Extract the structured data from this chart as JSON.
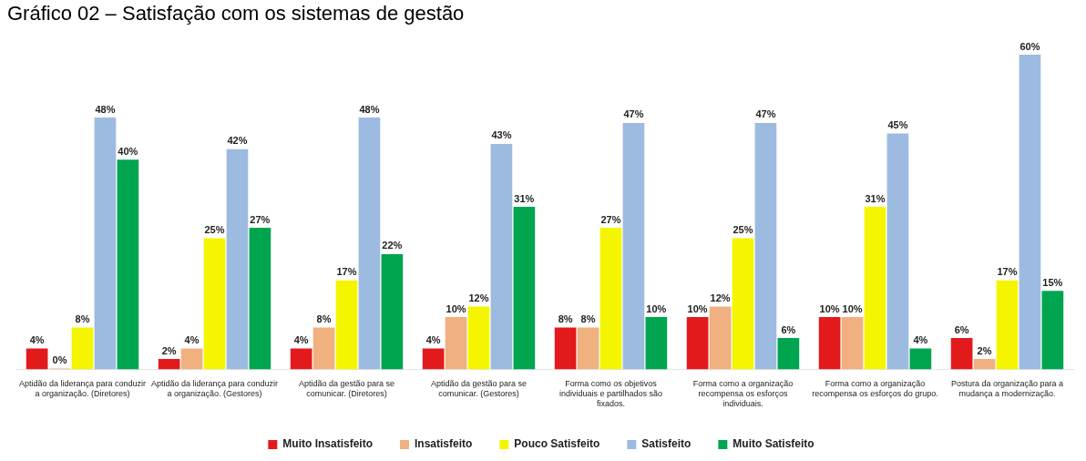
{
  "chart_data": {
    "type": "bar",
    "title": "Gráfico 02 – Satisfação com os sistemas de gestão",
    "categories": [
      "Aptidão da liderança para conduzir a organização. (Diretores)",
      "Aptidão da liderança para conduzir a organização. (Gestores)",
      "Aptidão da gestão para se comunicar. (Diretores)",
      "Aptidão da gestão para se comunicar. (Gestores)",
      "Forma como os objetivos individuais e partilhados são fixados.",
      "Forma como a organização recompensa os esforços individuais.",
      "Forma como a organização recompensa os esforços do grupo.",
      "Postura da organização para a mudança a modernização."
    ],
    "series": [
      {
        "name": "Muito Insatisfeito",
        "color": "#e31a1c",
        "values": [
          4,
          2,
          4,
          4,
          8,
          10,
          10,
          6
        ],
        "value_labels": [
          "4%",
          "2%",
          "4%",
          "4%",
          "8%",
          "10%",
          "10%",
          "6%"
        ]
      },
      {
        "name": "Insatisfeito",
        "color": "#f0b080",
        "values": [
          0,
          4,
          8,
          10,
          8,
          12,
          10,
          2
        ],
        "value_labels": [
          "0%",
          "4%",
          "8%",
          "10%",
          "8%",
          "12%",
          "10%",
          "2%"
        ]
      },
      {
        "name": "Pouco Satisfeito",
        "color": "#f5f500",
        "values": [
          8,
          25,
          17,
          12,
          27,
          25,
          31,
          17
        ],
        "value_labels": [
          "8%",
          "25%",
          "17%",
          "12%",
          "27%",
          "25%",
          "31%",
          "17%"
        ]
      },
      {
        "name": "Satisfeito",
        "color": "#9dbbe0",
        "values": [
          48,
          42,
          48,
          43,
          47,
          47,
          45,
          60
        ],
        "value_labels": [
          "48%",
          "42%",
          "48%",
          "43%",
          "47%",
          "47%",
          "45%",
          "60%"
        ]
      },
      {
        "name": "Muito Satisfeito",
        "color": "#00a550",
        "values": [
          40,
          27,
          22,
          31,
          10,
          6,
          4,
          15
        ],
        "value_labels": [
          "40%",
          "27%",
          "22%",
          "31%",
          "10%",
          "6%",
          "4%",
          "15%"
        ]
      }
    ],
    "tick_labels": "x",
    "legend": "bottom"
  }
}
